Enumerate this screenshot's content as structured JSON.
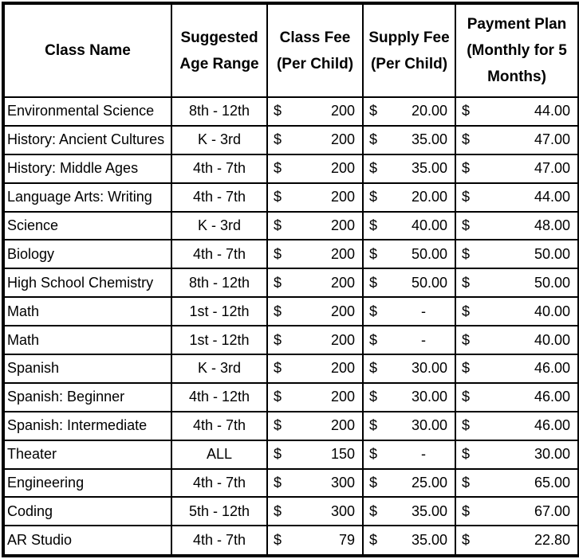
{
  "chart_data": {
    "type": "table",
    "currency_symbol": "$",
    "columns": [
      "Class Name",
      "Suggested Age Range",
      "Class Fee (Per Child)",
      "Supply Fee (Per Child)",
      "Payment Plan (Monthly for 5 Months)"
    ],
    "rows": [
      {
        "class_name": "Environmental Science",
        "age_range": "8th - 12th",
        "class_fee": "200",
        "supply_fee": "20.00",
        "payment_plan": "44.00"
      },
      {
        "class_name": "History: Ancient Cultures",
        "age_range": "K - 3rd",
        "class_fee": "200",
        "supply_fee": "35.00",
        "payment_plan": "47.00"
      },
      {
        "class_name": "History: Middle Ages",
        "age_range": "4th - 7th",
        "class_fee": "200",
        "supply_fee": "35.00",
        "payment_plan": "47.00"
      },
      {
        "class_name": "Language Arts: Writing",
        "age_range": "4th - 7th",
        "class_fee": "200",
        "supply_fee": "20.00",
        "payment_plan": "44.00"
      },
      {
        "class_name": "Science",
        "age_range": "K - 3rd",
        "class_fee": "200",
        "supply_fee": "40.00",
        "payment_plan": "48.00"
      },
      {
        "class_name": "Biology",
        "age_range": "4th - 7th",
        "class_fee": "200",
        "supply_fee": "50.00",
        "payment_plan": "50.00"
      },
      {
        "class_name": "High School Chemistry",
        "age_range": "8th - 12th",
        "class_fee": "200",
        "supply_fee": "50.00",
        "payment_plan": "50.00"
      },
      {
        "class_name": "Math",
        "age_range": "1st - 12th",
        "class_fee": "200",
        "supply_fee": "-",
        "payment_plan": "40.00"
      },
      {
        "class_name": "Math",
        "age_range": "1st - 12th",
        "class_fee": "200",
        "supply_fee": "-",
        "payment_plan": "40.00"
      },
      {
        "class_name": "Spanish",
        "age_range": "K - 3rd",
        "class_fee": "200",
        "supply_fee": "30.00",
        "payment_plan": "46.00"
      },
      {
        "class_name": "Spanish: Beginner",
        "age_range": "4th - 12th",
        "class_fee": "200",
        "supply_fee": "30.00",
        "payment_plan": "46.00"
      },
      {
        "class_name": "Spanish: Intermediate",
        "age_range": "4th - 7th",
        "class_fee": "200",
        "supply_fee": "30.00",
        "payment_plan": "46.00"
      },
      {
        "class_name": "Theater",
        "age_range": "ALL",
        "class_fee": "150",
        "supply_fee": "-",
        "payment_plan": "30.00"
      },
      {
        "class_name": "Engineering",
        "age_range": "4th - 7th",
        "class_fee": "300",
        "supply_fee": "25.00",
        "payment_plan": "65.00"
      },
      {
        "class_name": "Coding",
        "age_range": "5th - 12th",
        "class_fee": "300",
        "supply_fee": "35.00",
        "payment_plan": "67.00"
      },
      {
        "class_name": "AR Studio",
        "age_range": "4th - 7th",
        "class_fee": "79",
        "supply_fee": "35.00",
        "payment_plan": "22.80"
      }
    ],
    "styles": {
      "border_color": "#000000",
      "background_color": "#ffffff",
      "text_color": "#000000"
    }
  }
}
